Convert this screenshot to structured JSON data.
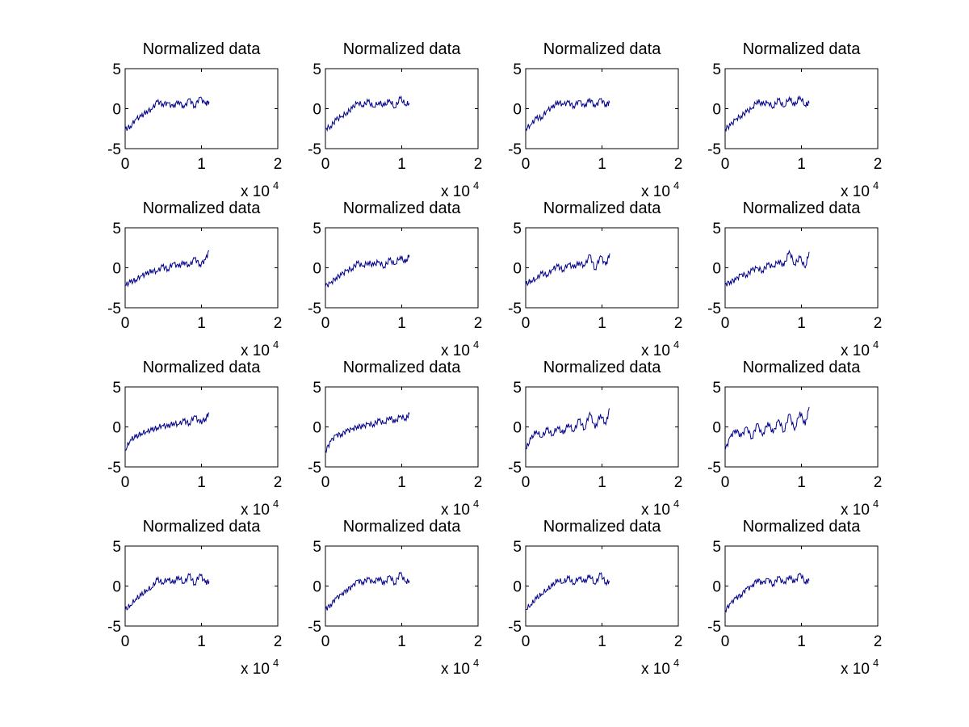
{
  "figure": {
    "background": "#ffffff",
    "grid": "4x4"
  },
  "chart_data": [
    {
      "type": "line",
      "title": "Normalized data",
      "xlim": [
        0,
        20000
      ],
      "ylim": [
        -5,
        5
      ],
      "x_ticks": [
        "0",
        "1",
        "2"
      ],
      "y_ticks": [
        "5",
        "0",
        "-5"
      ],
      "x_multiplier": "x 10",
      "x_multiplier_exponent": "4",
      "grid": false,
      "line_color": "#00008b",
      "series": [
        {
          "x": [
            0,
            700,
            1400,
            2100,
            2800,
            3500,
            4200,
            4900,
            5600,
            6300,
            7000,
            7700,
            8400,
            9100,
            9800,
            10500,
            11000
          ],
          "y": [
            -2.6,
            -2.2,
            -1.3,
            -1.0,
            -0.3,
            -0.1,
            0.9,
            0.6,
            0.7,
            0.2,
            1.0,
            0.1,
            1.2,
            0.3,
            1.4,
            0.6,
            0.9
          ]
        }
      ]
    },
    {
      "type": "line",
      "title": "Normalized data",
      "xlim": [
        0,
        20000
      ],
      "ylim": [
        -5,
        5
      ],
      "x_ticks": [
        "0",
        "1",
        "2"
      ],
      "y_ticks": [
        "5",
        "0",
        "-5"
      ],
      "x_multiplier": "x 10",
      "x_multiplier_exponent": "4",
      "grid": false,
      "line_color": "#00008b",
      "series": [
        {
          "x": [
            0,
            700,
            1400,
            2100,
            2800,
            3500,
            4200,
            4900,
            5600,
            6300,
            7000,
            7700,
            8400,
            9100,
            9800,
            10500,
            11000
          ],
          "y": [
            -2.5,
            -2.2,
            -1.4,
            -1.0,
            -0.5,
            0.0,
            0.8,
            0.4,
            0.9,
            0.2,
            0.8,
            0.3,
            1.1,
            0.1,
            1.3,
            0.5,
            0.7
          ]
        }
      ]
    },
    {
      "type": "line",
      "title": "Normalized data",
      "xlim": [
        0,
        20000
      ],
      "ylim": [
        -5,
        5
      ],
      "x_ticks": [
        "0",
        "1",
        "2"
      ],
      "y_ticks": [
        "5",
        "0",
        "-5"
      ],
      "x_multiplier": "x 10",
      "x_multiplier_exponent": "4",
      "grid": false,
      "line_color": "#00008b",
      "series": [
        {
          "x": [
            0,
            700,
            1400,
            2100,
            2800,
            3500,
            4200,
            4900,
            5600,
            6300,
            7000,
            7700,
            8400,
            9100,
            9800,
            10500,
            11000
          ],
          "y": [
            -2.5,
            -2.0,
            -1.2,
            -1.1,
            -0.2,
            0.1,
            0.9,
            0.5,
            0.8,
            0.3,
            1.0,
            0.2,
            1.3,
            0.2,
            1.2,
            0.5,
            0.8
          ]
        }
      ]
    },
    {
      "type": "line",
      "title": "Normalized data",
      "xlim": [
        0,
        20000
      ],
      "ylim": [
        -5,
        5
      ],
      "x_ticks": [
        "0",
        "1",
        "2"
      ],
      "y_ticks": [
        "5",
        "0",
        "-5"
      ],
      "x_multiplier": "x 10",
      "x_multiplier_exponent": "4",
      "grid": false,
      "line_color": "#00008b",
      "series": [
        {
          "x": [
            0,
            700,
            1400,
            2100,
            2800,
            3500,
            4200,
            4900,
            5600,
            6300,
            7000,
            7700,
            8400,
            9100,
            9800,
            10500,
            11000
          ],
          "y": [
            -2.5,
            -2.1,
            -1.3,
            -0.9,
            -0.4,
            0.0,
            1.0,
            0.5,
            0.8,
            0.2,
            1.1,
            0.2,
            1.4,
            0.3,
            1.5,
            0.4,
            0.7
          ]
        }
      ]
    },
    {
      "type": "line",
      "title": "Normalized data",
      "xlim": [
        0,
        20000
      ],
      "ylim": [
        -5,
        5
      ],
      "x_ticks": [
        "0",
        "1",
        "2"
      ],
      "y_ticks": [
        "5",
        "0",
        "-5"
      ],
      "x_multiplier": "x 10",
      "x_multiplier_exponent": "4",
      "grid": false,
      "line_color": "#00008b",
      "series": [
        {
          "x": [
            0,
            700,
            1400,
            2100,
            2800,
            3500,
            4200,
            4900,
            5600,
            6300,
            7000,
            7700,
            8400,
            9100,
            9800,
            10500,
            11000
          ],
          "y": [
            -2.2,
            -1.8,
            -1.5,
            -1.0,
            -0.8,
            -0.3,
            -0.5,
            0.2,
            -0.2,
            0.6,
            0.1,
            0.8,
            0.2,
            1.2,
            0.4,
            1.0,
            2.1
          ]
        }
      ]
    },
    {
      "type": "line",
      "title": "Normalized data",
      "xlim": [
        0,
        20000
      ],
      "ylim": [
        -5,
        5
      ],
      "x_ticks": [
        "0",
        "1",
        "2"
      ],
      "y_ticks": [
        "5",
        "0",
        "-5"
      ],
      "x_multiplier": "x 10",
      "x_multiplier_exponent": "4",
      "grid": false,
      "line_color": "#00008b",
      "series": [
        {
          "x": [
            0,
            700,
            1400,
            2100,
            2800,
            3500,
            4200,
            4900,
            5600,
            6300,
            7000,
            7700,
            8400,
            9100,
            9800,
            10500,
            11000
          ],
          "y": [
            -2.3,
            -1.9,
            -1.2,
            -0.9,
            -0.3,
            -0.1,
            0.6,
            0.2,
            0.7,
            0.3,
            0.8,
            0.1,
            1.0,
            0.4,
            1.4,
            0.6,
            1.6
          ]
        }
      ]
    },
    {
      "type": "line",
      "title": "Normalized data",
      "xlim": [
        0,
        20000
      ],
      "ylim": [
        -5,
        5
      ],
      "x_ticks": [
        "0",
        "1",
        "2"
      ],
      "y_ticks": [
        "5",
        "0",
        "-5"
      ],
      "x_multiplier": "x 10",
      "x_multiplier_exponent": "4",
      "grid": false,
      "line_color": "#00008b",
      "series": [
        {
          "x": [
            0,
            700,
            1400,
            2100,
            2800,
            3500,
            4200,
            4900,
            5600,
            6300,
            7000,
            7700,
            8400,
            9100,
            9800,
            10500,
            11000
          ],
          "y": [
            -2.1,
            -1.6,
            -1.4,
            -0.7,
            -0.9,
            -0.2,
            0.2,
            -0.3,
            0.5,
            0.0,
            0.7,
            0.2,
            1.6,
            -0.2,
            1.5,
            0.3,
            1.8
          ]
        }
      ]
    },
    {
      "type": "line",
      "title": "Normalized data",
      "xlim": [
        0,
        20000
      ],
      "ylim": [
        -5,
        5
      ],
      "x_ticks": [
        "0",
        "1",
        "2"
      ],
      "y_ticks": [
        "5",
        "0",
        "-5"
      ],
      "x_multiplier": "x 10",
      "x_multiplier_exponent": "4",
      "grid": false,
      "line_color": "#00008b",
      "series": [
        {
          "x": [
            0,
            700,
            1400,
            2100,
            2800,
            3500,
            4200,
            4900,
            5600,
            6300,
            7000,
            7700,
            8400,
            9100,
            9800,
            10500,
            11000
          ],
          "y": [
            -2.1,
            -1.7,
            -1.5,
            -0.8,
            -0.9,
            -0.3,
            0.0,
            -0.4,
            0.4,
            0.1,
            0.9,
            0.2,
            2.1,
            0.4,
            1.3,
            0.0,
            2.0
          ]
        }
      ]
    },
    {
      "type": "line",
      "title": "Normalized data",
      "xlim": [
        0,
        20000
      ],
      "ylim": [
        -5,
        5
      ],
      "x_ticks": [
        "0",
        "1",
        "2"
      ],
      "y_ticks": [
        "5",
        "0",
        "-5"
      ],
      "x_multiplier": "x 10",
      "x_multiplier_exponent": "4",
      "grid": false,
      "line_color": "#00008b",
      "series": [
        {
          "x": [
            0,
            700,
            1400,
            2100,
            2800,
            3500,
            4200,
            4900,
            5600,
            6300,
            7000,
            7700,
            8400,
            9100,
            9800,
            10500,
            11000
          ],
          "y": [
            -2.9,
            -1.6,
            -1.3,
            -0.8,
            -0.6,
            -0.4,
            -0.1,
            0.2,
            0.0,
            0.5,
            0.3,
            0.8,
            0.4,
            1.4,
            0.5,
            1.0,
            1.8
          ]
        }
      ]
    },
    {
      "type": "line",
      "title": "Normalized data",
      "xlim": [
        0,
        20000
      ],
      "ylim": [
        -5,
        5
      ],
      "x_ticks": [
        "0",
        "1",
        "2"
      ],
      "y_ticks": [
        "5",
        "0",
        "-5"
      ],
      "x_multiplier": "x 10",
      "x_multiplier_exponent": "4",
      "grid": false,
      "line_color": "#00008b",
      "series": [
        {
          "x": [
            0,
            700,
            1400,
            2100,
            2800,
            3500,
            4200,
            4900,
            5600,
            6300,
            7000,
            7700,
            8400,
            9100,
            9800,
            10500,
            11000
          ],
          "y": [
            -3.0,
            -1.8,
            -1.0,
            -0.9,
            -0.5,
            -0.3,
            0.1,
            0.0,
            0.4,
            0.3,
            0.8,
            0.4,
            1.3,
            0.5,
            1.4,
            1.0,
            1.6
          ]
        }
      ]
    },
    {
      "type": "line",
      "title": "Normalized data",
      "xlim": [
        0,
        20000
      ],
      "ylim": [
        -5,
        5
      ],
      "x_ticks": [
        "0",
        "1",
        "2"
      ],
      "y_ticks": [
        "5",
        "0",
        "-5"
      ],
      "x_multiplier": "x 10",
      "x_multiplier_exponent": "4",
      "grid": false,
      "line_color": "#00008b",
      "series": [
        {
          "x": [
            0,
            700,
            1400,
            2100,
            2800,
            3500,
            4200,
            4900,
            5600,
            6300,
            7000,
            7700,
            8400,
            9100,
            9800,
            10500,
            11000
          ],
          "y": [
            -2.8,
            -1.5,
            -0.5,
            -1.3,
            -0.3,
            -1.0,
            0.0,
            -0.9,
            0.4,
            -0.6,
            0.9,
            -0.3,
            1.8,
            -0.2,
            1.6,
            0.3,
            2.3
          ]
        }
      ]
    },
    {
      "type": "line",
      "title": "Normalized data",
      "xlim": [
        0,
        20000
      ],
      "ylim": [
        -5,
        5
      ],
      "x_ticks": [
        "0",
        "1",
        "2"
      ],
      "y_ticks": [
        "5",
        "0",
        "-5"
      ],
      "x_multiplier": "x 10",
      "x_multiplier_exponent": "4",
      "grid": false,
      "line_color": "#00008b",
      "series": [
        {
          "x": [
            0,
            700,
            1400,
            2100,
            2800,
            3500,
            4200,
            4900,
            5600,
            6300,
            7000,
            7700,
            8400,
            9100,
            9800,
            10500,
            11000
          ],
          "y": [
            -2.9,
            -1.2,
            -0.3,
            -1.2,
            0.0,
            -1.4,
            0.4,
            -1.1,
            0.6,
            -0.8,
            0.9,
            -0.6,
            1.6,
            -0.4,
            1.9,
            0.2,
            2.5
          ]
        }
      ]
    },
    {
      "type": "line",
      "title": "Normalized data",
      "xlim": [
        0,
        20000
      ],
      "ylim": [
        -5,
        5
      ],
      "x_ticks": [
        "0",
        "1",
        "2"
      ],
      "y_ticks": [
        "5",
        "0",
        "-5"
      ],
      "x_multiplier": "x 10",
      "x_multiplier_exponent": "4",
      "grid": false,
      "line_color": "#00008b",
      "series": [
        {
          "x": [
            0,
            700,
            1400,
            2100,
            2800,
            3500,
            4200,
            4900,
            5600,
            6300,
            7000,
            7700,
            8400,
            9100,
            9800,
            10500,
            11000
          ],
          "y": [
            -3.0,
            -2.4,
            -1.6,
            -1.2,
            -0.5,
            -0.2,
            0.8,
            0.4,
            0.9,
            0.3,
            1.2,
            0.3,
            1.4,
            0.2,
            1.5,
            0.4,
            0.6
          ]
        }
      ]
    },
    {
      "type": "line",
      "title": "Normalized data",
      "xlim": [
        0,
        20000
      ],
      "ylim": [
        -5,
        5
      ],
      "x_ticks": [
        "0",
        "1",
        "2"
      ],
      "y_ticks": [
        "5",
        "0",
        "-5"
      ],
      "x_multiplier": "x 10",
      "x_multiplier_exponent": "4",
      "grid": false,
      "line_color": "#00008b",
      "series": [
        {
          "x": [
            0,
            700,
            1400,
            2100,
            2800,
            3500,
            4200,
            4900,
            5600,
            6300,
            7000,
            7700,
            8400,
            9100,
            9800,
            10500,
            11000
          ],
          "y": [
            -2.9,
            -2.3,
            -1.5,
            -1.1,
            -0.4,
            -0.1,
            0.7,
            0.5,
            0.9,
            0.4,
            1.1,
            0.2,
            1.3,
            0.3,
            1.6,
            0.5,
            0.7
          ]
        }
      ]
    },
    {
      "type": "line",
      "title": "Normalized data",
      "xlim": [
        0,
        20000
      ],
      "ylim": [
        -5,
        5
      ],
      "x_ticks": [
        "0",
        "1",
        "2"
      ],
      "y_ticks": [
        "5",
        "0",
        "-5"
      ],
      "x_multiplier": "x 10",
      "x_multiplier_exponent": "4",
      "grid": false,
      "line_color": "#00008b",
      "series": [
        {
          "x": [
            0,
            700,
            1400,
            2100,
            2800,
            3500,
            4200,
            4900,
            5600,
            6300,
            7000,
            7700,
            8400,
            9100,
            9800,
            10500,
            11000
          ],
          "y": [
            -2.9,
            -2.3,
            -1.6,
            -1.0,
            -0.4,
            0.0,
            0.8,
            0.4,
            1.0,
            0.3,
            1.1,
            0.4,
            1.4,
            0.2,
            1.5,
            0.4,
            0.6
          ]
        }
      ]
    },
    {
      "type": "line",
      "title": "Normalized data",
      "xlim": [
        0,
        20000
      ],
      "ylim": [
        -5,
        5
      ],
      "x_ticks": [
        "0",
        "1",
        "2"
      ],
      "y_ticks": [
        "5",
        "0",
        "-5"
      ],
      "x_multiplier": "x 10",
      "x_multiplier_exponent": "4",
      "grid": false,
      "line_color": "#00008b",
      "series": [
        {
          "x": [
            0,
            700,
            1400,
            2100,
            2800,
            3500,
            4200,
            4900,
            5600,
            6300,
            7000,
            7700,
            8400,
            9100,
            9800,
            10500,
            11000
          ],
          "y": [
            -3.0,
            -2.2,
            -1.5,
            -1.1,
            -0.3,
            -0.1,
            0.9,
            0.3,
            0.9,
            0.2,
            1.1,
            0.3,
            1.3,
            0.4,
            1.6,
            0.5,
            0.7
          ]
        }
      ]
    }
  ]
}
